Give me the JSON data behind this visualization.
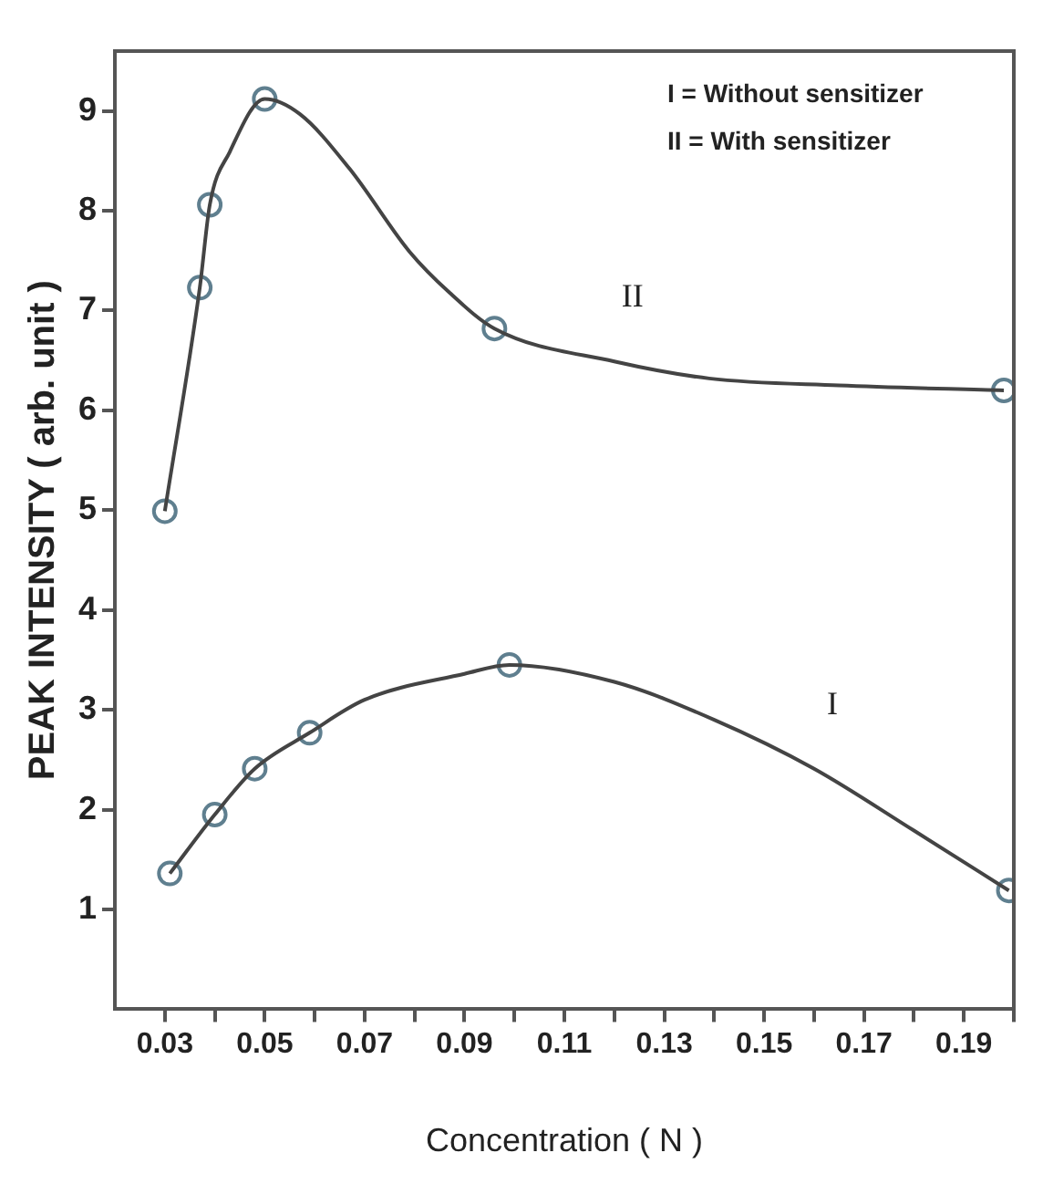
{
  "chart_data": {
    "type": "line",
    "xlabel": "Concentration ( N )",
    "ylabel": "PEAK INTENSITY ( arb. unit )",
    "xlim": [
      0.02,
      0.2
    ],
    "ylim": [
      0,
      9.6
    ],
    "xticks": [
      0.03,
      {
        "value": 0.04,
        "label": null
      },
      0.05,
      {
        "value": 0.06,
        "label": null
      },
      0.07,
      {
        "value": 0.08,
        "label": null
      },
      0.09,
      {
        "value": 0.1,
        "label": null
      },
      0.11,
      {
        "value": 0.12,
        "label": null
      },
      0.13,
      {
        "value": 0.14,
        "label": null
      },
      0.15,
      {
        "value": 0.16,
        "label": null
      },
      0.17,
      {
        "value": 0.18,
        "label": null
      },
      0.19,
      {
        "value": 0.2,
        "label": null
      }
    ],
    "yticks": [
      1,
      2,
      3,
      4,
      5,
      6,
      7,
      8,
      9
    ],
    "grid": false,
    "legend": false,
    "annotations": [
      "I = Without sensitizer",
      "II = With sensitizer"
    ],
    "series": [
      {
        "name": "II",
        "type": "line",
        "color": "#444444",
        "marker": "none",
        "x": [
          0.03,
          0.037,
          0.039,
          0.043,
          0.05,
          0.057,
          0.067,
          0.079,
          0.087,
          0.096,
          0.12,
          0.139,
          0.165,
          0.198
        ],
        "values": [
          4.99,
          7.23,
          8.06,
          8.59,
          9.12,
          8.97,
          8.42,
          7.59,
          7.18,
          6.82,
          6.49,
          6.32,
          6.25,
          6.2
        ]
      },
      {
        "name": "I",
        "type": "line",
        "color": "#444444",
        "marker": "none",
        "x": [
          0.031,
          0.04,
          0.048,
          0.059,
          0.07,
          0.09,
          0.099,
          0.12,
          0.14,
          0.16,
          0.18,
          0.199
        ],
        "values": [
          1.36,
          1.95,
          2.41,
          2.77,
          3.1,
          3.36,
          3.45,
          3.28,
          2.9,
          2.41,
          1.79,
          1.19
        ]
      },
      {
        "type": "scatter",
        "color": "#5f7f8f",
        "marker": "circle",
        "x": [
          0.03,
          0.037,
          0.039,
          0.05,
          0.096,
          0.198
        ],
        "values": [
          4.99,
          7.23,
          8.06,
          9.12,
          6.82,
          6.2
        ]
      },
      {
        "type": "scatter",
        "color": "#5f7f8f",
        "marker": "circle",
        "x": [
          0.031,
          0.04,
          0.048,
          0.059,
          0.099,
          0.199
        ],
        "values": [
          1.36,
          1.95,
          2.41,
          2.77,
          3.45,
          1.19
        ]
      }
    ]
  }
}
